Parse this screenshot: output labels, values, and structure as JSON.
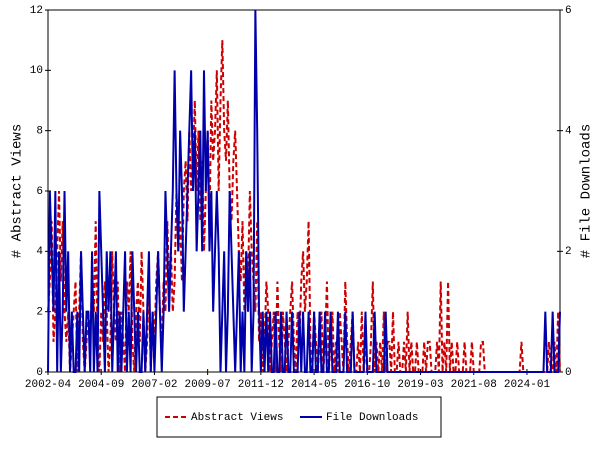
{
  "chart_data": {
    "type": "line",
    "x": [
      "2002-04",
      "2002-05",
      "2002-06",
      "2002-07",
      "2002-08",
      "2002-09",
      "2002-10",
      "2002-11",
      "2002-12",
      "2003-01",
      "2003-02",
      "2003-03",
      "2003-04",
      "2003-05",
      "2003-06",
      "2003-07",
      "2003-08",
      "2003-09",
      "2003-10",
      "2003-11",
      "2003-12",
      "2004-01",
      "2004-02",
      "2004-03",
      "2004-04",
      "2004-05",
      "2004-06",
      "2004-07",
      "2004-08",
      "2004-09",
      "2004-10",
      "2004-11",
      "2004-12",
      "2005-01",
      "2005-02",
      "2005-03",
      "2005-04",
      "2005-05",
      "2005-06",
      "2005-07",
      "2005-08",
      "2005-09",
      "2005-10",
      "2005-11",
      "2005-12",
      "2006-01",
      "2006-02",
      "2006-03",
      "2006-04",
      "2006-05",
      "2006-06",
      "2006-07",
      "2006-08",
      "2006-09",
      "2006-10",
      "2006-11",
      "2006-12",
      "2007-01",
      "2007-02",
      "2007-03",
      "2007-04",
      "2007-05",
      "2007-06",
      "2007-07",
      "2007-08",
      "2007-09",
      "2007-10",
      "2007-11",
      "2007-12",
      "2008-01",
      "2008-02",
      "2008-03",
      "2008-04",
      "2008-05",
      "2008-06",
      "2008-07",
      "2008-08",
      "2008-09",
      "2008-10",
      "2008-11",
      "2008-12",
      "2009-01",
      "2009-02",
      "2009-03",
      "2009-04",
      "2009-05",
      "2009-06",
      "2009-07",
      "2009-08",
      "2009-09",
      "2009-10",
      "2009-11",
      "2009-12",
      "2010-01",
      "2010-02",
      "2010-03",
      "2010-04",
      "2010-05",
      "2010-06",
      "2010-07",
      "2010-08",
      "2010-09",
      "2010-10",
      "2010-11",
      "2010-12",
      "2011-01",
      "2011-02",
      "2011-03",
      "2011-04",
      "2011-05",
      "2011-06",
      "2011-07",
      "2011-08",
      "2011-09",
      "2011-10",
      "2011-11",
      "2011-12",
      "2012-01",
      "2012-02",
      "2012-03",
      "2012-04",
      "2012-05",
      "2012-06",
      "2012-07",
      "2012-08",
      "2012-09",
      "2012-10",
      "2012-11",
      "2012-12",
      "2013-01",
      "2013-02",
      "2013-03",
      "2013-04",
      "2013-05",
      "2013-06",
      "2013-07",
      "2013-08",
      "2013-09",
      "2013-10",
      "2013-11",
      "2013-12",
      "2014-01",
      "2014-02",
      "2014-03",
      "2014-04",
      "2014-05",
      "2014-06",
      "2014-07",
      "2014-08",
      "2014-09",
      "2014-10",
      "2014-11",
      "2014-12",
      "2015-01",
      "2015-02",
      "2015-03",
      "2015-04",
      "2015-05",
      "2015-06",
      "2015-07",
      "2015-08",
      "2015-09",
      "2015-10",
      "2015-11",
      "2015-12",
      "2016-01",
      "2016-02",
      "2016-03",
      "2016-04",
      "2016-05",
      "2016-06",
      "2016-07",
      "2016-08",
      "2016-09",
      "2016-10",
      "2016-11",
      "2016-12",
      "2017-01",
      "2017-02",
      "2017-03",
      "2017-04",
      "2017-05",
      "2017-06",
      "2017-07",
      "2017-08",
      "2017-09",
      "2017-10",
      "2017-11",
      "2017-12",
      "2018-01",
      "2018-02",
      "2018-03",
      "2018-04",
      "2018-05",
      "2018-06",
      "2018-07",
      "2018-08",
      "2018-09",
      "2018-10",
      "2018-11",
      "2018-12",
      "2019-01",
      "2019-02",
      "2019-03",
      "2019-04",
      "2019-05",
      "2019-06",
      "2019-07",
      "2019-08",
      "2019-09",
      "2019-10",
      "2019-11",
      "2019-12",
      "2020-01",
      "2020-02",
      "2020-03",
      "2020-04",
      "2020-05",
      "2020-06",
      "2020-07",
      "2020-08",
      "2020-09",
      "2020-10",
      "2020-11",
      "2020-12",
      "2021-01",
      "2021-02",
      "2021-03",
      "2021-04",
      "2021-05",
      "2021-06",
      "2021-07",
      "2021-08",
      "2021-09",
      "2021-10",
      "2021-11",
      "2021-12",
      "2022-01",
      "2022-02",
      "2022-03",
      "2022-04",
      "2022-05",
      "2022-06",
      "2022-07",
      "2022-08",
      "2022-09",
      "2022-10",
      "2022-11",
      "2022-12",
      "2023-01",
      "2023-02",
      "2023-03",
      "2023-04",
      "2023-05",
      "2023-06",
      "2023-07",
      "2023-08",
      "2023-09",
      "2023-10",
      "2023-11",
      "2023-12",
      "2024-01",
      "2024-02",
      "2024-03",
      "2024-04",
      "2024-05",
      "2024-06",
      "2024-07",
      "2024-08",
      "2024-09",
      "2024-10",
      "2024-11",
      "2024-12",
      "2025-01",
      "2025-02",
      "2025-03",
      "2025-04",
      "2025-05",
      "2025-06",
      "2025-07"
    ],
    "series": [
      {
        "name": "Abstract Views",
        "color": "#cc0000",
        "dash": "dashed",
        "axis": "y",
        "values": [
          2,
          3,
          5,
          1,
          2,
          4,
          6,
          3,
          5,
          2,
          1,
          2,
          0,
          1,
          2,
          3,
          0,
          2,
          4,
          1,
          0,
          1,
          2,
          1,
          3,
          2,
          5,
          1,
          0,
          2,
          1,
          3,
          2,
          0,
          1,
          4,
          2,
          1,
          3,
          0,
          2,
          1,
          0,
          3,
          2,
          4,
          1,
          0,
          2,
          3,
          1,
          4,
          2,
          0,
          1,
          3,
          0,
          2,
          1,
          3,
          4,
          2,
          1,
          3,
          2,
          5,
          3,
          4,
          2,
          3,
          6,
          4,
          5,
          3,
          6,
          7,
          5,
          8,
          6,
          7,
          9,
          6,
          8,
          5,
          7,
          4,
          6,
          8,
          5,
          9,
          7,
          8,
          10,
          6,
          9,
          11,
          8,
          7,
          9,
          6,
          5,
          7,
          8,
          6,
          4,
          3,
          5,
          2,
          4,
          3,
          6,
          4,
          3,
          2,
          5,
          1,
          2,
          0,
          1,
          3,
          2,
          0,
          1,
          2,
          0,
          3,
          1,
          0,
          2,
          1,
          0,
          1,
          2,
          3,
          1,
          0,
          2,
          1,
          3,
          4,
          2,
          3,
          5,
          1,
          0,
          2,
          1,
          0,
          1,
          2,
          0,
          1,
          3,
          0,
          1,
          2,
          0,
          1,
          0,
          2,
          1,
          0,
          3,
          1,
          0,
          1,
          2,
          0,
          0,
          1,
          0,
          2,
          0,
          1,
          0,
          0,
          1,
          3,
          0,
          1,
          0,
          1,
          0,
          2,
          0,
          1,
          1,
          0,
          2,
          0,
          0,
          1,
          0,
          0,
          1,
          0,
          2,
          0,
          1,
          0,
          0,
          1,
          0,
          0,
          0,
          1,
          0,
          1,
          1,
          0,
          0,
          0,
          1,
          0,
          3,
          0,
          1,
          0,
          3,
          0,
          1,
          0,
          0,
          1,
          0,
          0,
          0,
          1,
          0,
          0,
          0,
          1,
          0,
          0,
          0,
          0,
          1,
          1,
          0,
          0,
          0,
          0,
          0,
          0,
          0,
          0,
          0,
          0,
          0,
          0,
          0,
          0,
          0,
          0,
          0,
          0,
          0,
          0,
          1,
          0,
          0,
          0,
          0,
          0,
          0,
          0,
          0,
          0,
          0,
          0,
          0,
          0,
          0,
          1,
          0,
          0,
          1,
          0,
          2,
          0
        ]
      },
      {
        "name": "File Downloads",
        "color": "#0000aa",
        "dash": "solid",
        "axis": "y2",
        "values": [
          0,
          3,
          2,
          1,
          3,
          0,
          2,
          0,
          1,
          3,
          1,
          2,
          0,
          1,
          0,
          0,
          1,
          0,
          2,
          1,
          0,
          1,
          1,
          0,
          2,
          0,
          1,
          0,
          3,
          2,
          1,
          0,
          2,
          1,
          2,
          0,
          1,
          2,
          0,
          1,
          0,
          1,
          2,
          0,
          1,
          0,
          2,
          1,
          0,
          1,
          0,
          0,
          1,
          0,
          1,
          2,
          0,
          1,
          0,
          1,
          2,
          1,
          0,
          1,
          3,
          2,
          1,
          2,
          3,
          5,
          3,
          2,
          4,
          3,
          1,
          2,
          3,
          4,
          5,
          3,
          4,
          2,
          3,
          4,
          2,
          5,
          3,
          4,
          2,
          3,
          1,
          2,
          3,
          2,
          0,
          1,
          2,
          0,
          1,
          3,
          2,
          1,
          0,
          1,
          2,
          0,
          1,
          0,
          2,
          1,
          2,
          0,
          1,
          6,
          4,
          1,
          0,
          1,
          0,
          1,
          0,
          1,
          0,
          0,
          1,
          0,
          0,
          1,
          0,
          0,
          1,
          0,
          0,
          1,
          0,
          0,
          0,
          1,
          0,
          1,
          0,
          0,
          1,
          0,
          0,
          1,
          0,
          0,
          1,
          0,
          0,
          1,
          0,
          0,
          1,
          0,
          0,
          0,
          1,
          0,
          0,
          0,
          1,
          0,
          0,
          0,
          1,
          0,
          0,
          0,
          0,
          0,
          0,
          1,
          0,
          0,
          0,
          0,
          1,
          0,
          0,
          0,
          0,
          0,
          1,
          0,
          0,
          0,
          0,
          0,
          0,
          0,
          0,
          0,
          0,
          0,
          0,
          0,
          0,
          0,
          0,
          0,
          0,
          0,
          0,
          0,
          0,
          0,
          0,
          0,
          0,
          0,
          0,
          0,
          0,
          0,
          0,
          0,
          0,
          0,
          0,
          0,
          0,
          0,
          0,
          0,
          0,
          0,
          0,
          0,
          0,
          0,
          0,
          0,
          0,
          0,
          0,
          0,
          0,
          0,
          0,
          0,
          0,
          0,
          0,
          0,
          0,
          0,
          0,
          0,
          0,
          0,
          0,
          0,
          0,
          0,
          0,
          0,
          0,
          0,
          0,
          0,
          0,
          0,
          0,
          0,
          0,
          0,
          0,
          0,
          0,
          1,
          0,
          0,
          0,
          1,
          0,
          0,
          0,
          1
        ]
      }
    ],
    "xticks": [
      "2002-04",
      "2004-09",
      "2007-02",
      "2009-07",
      "2011-12",
      "2014-05",
      "2016-10",
      "2019-03",
      "2021-08",
      "2024-01"
    ],
    "ylabel": "# Abstract Views",
    "ylim": [
      0,
      12
    ],
    "yticks": [
      0,
      2,
      4,
      6,
      8,
      10,
      12
    ],
    "y2label": "# File Downloads",
    "y2lim": [
      0,
      6
    ],
    "y2ticks": [
      0,
      2,
      4,
      6
    ],
    "legend": "bottom"
  }
}
